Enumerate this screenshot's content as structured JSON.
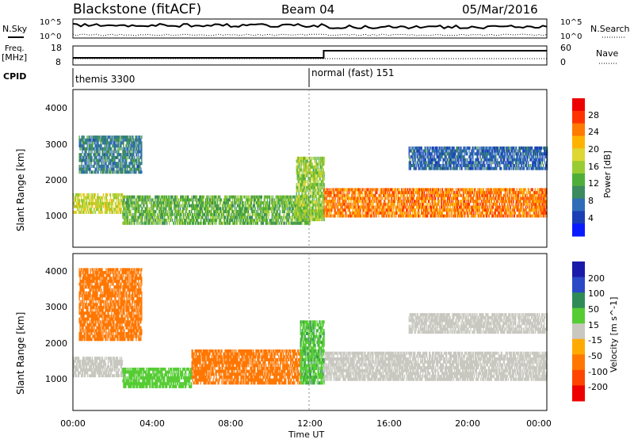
{
  "header": {
    "title": "Blackstone (fitACF)",
    "beam": "Beam 04",
    "date": "05/Mar/2016"
  },
  "left_labels": {
    "nsky": "N.Sky",
    "freq": "Freq.",
    "mhz": "[MHz]",
    "cpid": "CPID"
  },
  "right_labels": {
    "nsearch": "N.Search",
    "nave": "Nave"
  },
  "noise_axis": {
    "left_ticks": [
      "10^5",
      "10^0"
    ],
    "right_ticks": [
      "10^5",
      "10^0"
    ]
  },
  "freq_axis": {
    "left_ticks": [
      "18",
      "8"
    ],
    "right_ticks": [
      "60",
      "0"
    ]
  },
  "cpid": {
    "mode1": "themis 3300",
    "mode2": "normal (fast) 151"
  },
  "xaxis": {
    "label": "Time UT",
    "ticks": [
      "00:00",
      "04:00",
      "08:00",
      "12:00",
      "16:00",
      "20:00",
      "00:00"
    ]
  },
  "power_panel": {
    "ylabel": "Slant Range [km]",
    "yticks": [
      "4000",
      "3000",
      "2000",
      "1000"
    ],
    "colorbar_label": "Power [dB]",
    "colorbar_ticks": [
      "28",
      "24",
      "20",
      "16",
      "12",
      "8",
      "4"
    ],
    "colors": [
      "#0a1aff",
      "#1a3fb5",
      "#2f6db8",
      "#3d8a5e",
      "#4fae3a",
      "#99cc33",
      "#ddd633",
      "#ffb300",
      "#ff7a00",
      "#ff3300",
      "#ee0000"
    ]
  },
  "velocity_panel": {
    "ylabel": "Slant Range [km]",
    "yticks": [
      "4000",
      "3000",
      "2000",
      "1000"
    ],
    "colorbar_label": "Velocity [m s^-1]",
    "colorbar_ticks": [
      "200",
      "100",
      "50",
      "15",
      "-15",
      "-50",
      "-100",
      "-200"
    ],
    "colors": [
      "#1a1aaa",
      "#2b48c7",
      "#2e8b57",
      "#55cc33",
      "#c8c8c0",
      "#ffaa00",
      "#ff7700",
      "#ff4400",
      "#ee0000"
    ]
  },
  "chart_data": {
    "type": "heatmap",
    "title": "Blackstone (fitACF)",
    "xlabel": "Time UT",
    "ylabel": "Slant Range [km]",
    "xlim": [
      "00:00",
      "24:00"
    ],
    "ylim": [
      180,
      4500
    ],
    "cpid_switch_time": "12:42",
    "power_bands": [
      {
        "t_start": 0.0,
        "t_end": 2.5,
        "range_km": [
          1100,
          1600
        ],
        "power_db": 18
      },
      {
        "t_start": 0.3,
        "t_end": 3.5,
        "range_km": [
          2200,
          3200
        ],
        "power_db": 10
      },
      {
        "t_start": 2.5,
        "t_end": 12.0,
        "range_km": [
          800,
          1600
        ],
        "power_db": 14
      },
      {
        "t_start": 11.3,
        "t_end": 12.7,
        "range_km": [
          900,
          2600
        ],
        "power_db": 16
      },
      {
        "t_start": 12.7,
        "t_end": 24.0,
        "range_km": [
          1000,
          1800
        ],
        "power_db": 24
      },
      {
        "t_start": 17.0,
        "t_end": 24.0,
        "range_km": [
          2300,
          2900
        ],
        "power_db": 8
      }
    ],
    "velocity_bands": [
      {
        "t_start": 0.0,
        "t_end": 2.5,
        "range_km": [
          1100,
          1600
        ],
        "velocity_ms": -10
      },
      {
        "t_start": 0.3,
        "t_end": 3.5,
        "range_km": [
          2100,
          4100
        ],
        "velocity_ms": -40
      },
      {
        "t_start": 2.5,
        "t_end": 6.0,
        "range_km": [
          800,
          1300
        ],
        "velocity_ms": 20
      },
      {
        "t_start": 6.0,
        "t_end": 11.5,
        "range_km": [
          900,
          1800
        ],
        "velocity_ms": -40
      },
      {
        "t_start": 11.5,
        "t_end": 12.7,
        "range_km": [
          900,
          2600
        ],
        "velocity_ms": 30
      },
      {
        "t_start": 12.7,
        "t_end": 24.0,
        "range_km": [
          1000,
          1800
        ],
        "velocity_ms": 0
      },
      {
        "t_start": 17.0,
        "t_end": 24.0,
        "range_km": [
          2300,
          2800
        ],
        "velocity_ms": 0
      }
    ]
  }
}
